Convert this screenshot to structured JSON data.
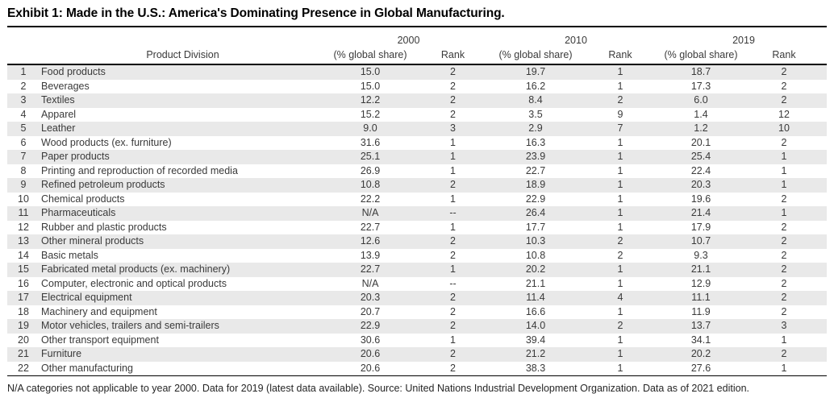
{
  "header": {
    "title": "Exhibit 1: Made in the U.S.: America's Dominating Presence in Global Manufacturing."
  },
  "table": {
    "year_columns": [
      "2000",
      "2010",
      "2019"
    ],
    "column_headers": {
      "product_division": "Product Division",
      "global_share": "(% global share)",
      "rank": "Rank"
    },
    "rows": [
      {
        "num": "1",
        "product": "Food products",
        "share_2000": "15.0",
        "rank_2000": "2",
        "share_2010": "19.7",
        "rank_2010": "1",
        "share_2019": "18.7",
        "rank_2019": "2"
      },
      {
        "num": "2",
        "product": "Beverages",
        "share_2000": "15.0",
        "rank_2000": "2",
        "share_2010": "16.2",
        "rank_2010": "1",
        "share_2019": "17.3",
        "rank_2019": "2"
      },
      {
        "num": "3",
        "product": "Textiles",
        "share_2000": "12.2",
        "rank_2000": "2",
        "share_2010": "8.4",
        "rank_2010": "2",
        "share_2019": "6.0",
        "rank_2019": "2"
      },
      {
        "num": "4",
        "product": "Apparel",
        "share_2000": "15.2",
        "rank_2000": "2",
        "share_2010": "3.5",
        "rank_2010": "9",
        "share_2019": "1.4",
        "rank_2019": "12"
      },
      {
        "num": "5",
        "product": "Leather",
        "share_2000": "9.0",
        "rank_2000": "3",
        "share_2010": "2.9",
        "rank_2010": "7",
        "share_2019": "1.2",
        "rank_2019": "10"
      },
      {
        "num": "6",
        "product": "Wood products (ex. furniture)",
        "share_2000": "31.6",
        "rank_2000": "1",
        "share_2010": "16.3",
        "rank_2010": "1",
        "share_2019": "20.1",
        "rank_2019": "2"
      },
      {
        "num": "7",
        "product": "Paper products",
        "share_2000": "25.1",
        "rank_2000": "1",
        "share_2010": "23.9",
        "rank_2010": "1",
        "share_2019": "25.4",
        "rank_2019": "1"
      },
      {
        "num": "8",
        "product": "Printing and reproduction of recorded media",
        "share_2000": "26.9",
        "rank_2000": "1",
        "share_2010": "22.7",
        "rank_2010": "1",
        "share_2019": "22.4",
        "rank_2019": "1"
      },
      {
        "num": "9",
        "product": "Refined petroleum products",
        "share_2000": "10.8",
        "rank_2000": "2",
        "share_2010": "18.9",
        "rank_2010": "1",
        "share_2019": "20.3",
        "rank_2019": "1"
      },
      {
        "num": "10",
        "product": "Chemical products",
        "share_2000": "22.2",
        "rank_2000": "1",
        "share_2010": "22.9",
        "rank_2010": "1",
        "share_2019": "19.6",
        "rank_2019": "2"
      },
      {
        "num": "11",
        "product": "Pharmaceuticals",
        "share_2000": "N/A",
        "rank_2000": "--",
        "share_2010": "26.4",
        "rank_2010": "1",
        "share_2019": "21.4",
        "rank_2019": "1"
      },
      {
        "num": "12",
        "product": "Rubber and plastic products",
        "share_2000": "22.7",
        "rank_2000": "1",
        "share_2010": "17.7",
        "rank_2010": "1",
        "share_2019": "17.9",
        "rank_2019": "2"
      },
      {
        "num": "13",
        "product": "Other mineral products",
        "share_2000": "12.6",
        "rank_2000": "2",
        "share_2010": "10.3",
        "rank_2010": "2",
        "share_2019": "10.7",
        "rank_2019": "2"
      },
      {
        "num": "14",
        "product": "Basic metals",
        "share_2000": "13.9",
        "rank_2000": "2",
        "share_2010": "10.8",
        "rank_2010": "2",
        "share_2019": "9.3",
        "rank_2019": "2"
      },
      {
        "num": "15",
        "product": "Fabricated metal products (ex. machinery)",
        "share_2000": "22.7",
        "rank_2000": "1",
        "share_2010": "20.2",
        "rank_2010": "1",
        "share_2019": "21.1",
        "rank_2019": "2"
      },
      {
        "num": "16",
        "product": "Computer, electronic and optical products",
        "share_2000": "N/A",
        "rank_2000": "--",
        "share_2010": "21.1",
        "rank_2010": "1",
        "share_2019": "12.9",
        "rank_2019": "2"
      },
      {
        "num": "17",
        "product": "Electrical equipment",
        "share_2000": "20.3",
        "rank_2000": "2",
        "share_2010": "11.4",
        "rank_2010": "4",
        "share_2019": "11.1",
        "rank_2019": "2"
      },
      {
        "num": "18",
        "product": "Machinery and equipment",
        "share_2000": "20.7",
        "rank_2000": "2",
        "share_2010": "16.6",
        "rank_2010": "1",
        "share_2019": "11.9",
        "rank_2019": "2"
      },
      {
        "num": "19",
        "product": "Motor vehicles, trailers and semi-trailers",
        "share_2000": "22.9",
        "rank_2000": "2",
        "share_2010": "14.0",
        "rank_2010": "2",
        "share_2019": "13.7",
        "rank_2019": "3"
      },
      {
        "num": "20",
        "product": "Other transport equipment",
        "share_2000": "30.6",
        "rank_2000": "1",
        "share_2010": "39.4",
        "rank_2010": "1",
        "share_2019": "34.1",
        "rank_2019": "1"
      },
      {
        "num": "21",
        "product": "Furniture",
        "share_2000": "20.6",
        "rank_2000": "2",
        "share_2010": "21.2",
        "rank_2010": "1",
        "share_2019": "20.2",
        "rank_2019": "2"
      },
      {
        "num": "22",
        "product": "Other manufacturing",
        "share_2000": "20.6",
        "rank_2000": "2",
        "share_2010": "38.3",
        "rank_2010": "1",
        "share_2019": "27.6",
        "rank_2019": "1"
      }
    ]
  },
  "footnote": "N/A categories not applicable to year 2000. Data for 2019 (latest data available). Source: United Nations Industrial Development Organization. Data as of 2021 edition.",
  "colors": {
    "stripe": "#e9e9e9",
    "rule": "#000000",
    "body_text": "#3a3a3a",
    "title_text": "#000000"
  },
  "chart_data": {
    "type": "table",
    "title": "Exhibit 1: Made in the U.S.: America's Dominating Presence in Global Manufacturing.",
    "columns": [
      "#",
      "Product Division",
      "2000 (% global share)",
      "2000 Rank",
      "2010 (% global share)",
      "2010 Rank",
      "2019 (% global share)",
      "2019 Rank"
    ],
    "rows": [
      [
        "1",
        "Food products",
        "15.0",
        "2",
        "19.7",
        "1",
        "18.7",
        "2"
      ],
      [
        "2",
        "Beverages",
        "15.0",
        "2",
        "16.2",
        "1",
        "17.3",
        "2"
      ],
      [
        "3",
        "Textiles",
        "12.2",
        "2",
        "8.4",
        "2",
        "6.0",
        "2"
      ],
      [
        "4",
        "Apparel",
        "15.2",
        "2",
        "3.5",
        "9",
        "1.4",
        "12"
      ],
      [
        "5",
        "Leather",
        "9.0",
        "3",
        "2.9",
        "7",
        "1.2",
        "10"
      ],
      [
        "6",
        "Wood products (ex. furniture)",
        "31.6",
        "1",
        "16.3",
        "1",
        "20.1",
        "2"
      ],
      [
        "7",
        "Paper products",
        "25.1",
        "1",
        "23.9",
        "1",
        "25.4",
        "1"
      ],
      [
        "8",
        "Printing and reproduction of recorded media",
        "26.9",
        "1",
        "22.7",
        "1",
        "22.4",
        "1"
      ],
      [
        "9",
        "Refined petroleum products",
        "10.8",
        "2",
        "18.9",
        "1",
        "20.3",
        "1"
      ],
      [
        "10",
        "Chemical products",
        "22.2",
        "1",
        "22.9",
        "1",
        "19.6",
        "2"
      ],
      [
        "11",
        "Pharmaceuticals",
        "N/A",
        "--",
        "26.4",
        "1",
        "21.4",
        "1"
      ],
      [
        "12",
        "Rubber and plastic products",
        "22.7",
        "1",
        "17.7",
        "1",
        "17.9",
        "2"
      ],
      [
        "13",
        "Other mineral products",
        "12.6",
        "2",
        "10.3",
        "2",
        "10.7",
        "2"
      ],
      [
        "14",
        "Basic metals",
        "13.9",
        "2",
        "10.8",
        "2",
        "9.3",
        "2"
      ],
      [
        "15",
        "Fabricated metal products (ex. machinery)",
        "22.7",
        "1",
        "20.2",
        "1",
        "21.1",
        "2"
      ],
      [
        "16",
        "Computer, electronic and optical products",
        "N/A",
        "--",
        "21.1",
        "1",
        "12.9",
        "2"
      ],
      [
        "17",
        "Electrical equipment",
        "20.3",
        "2",
        "11.4",
        "4",
        "11.1",
        "2"
      ],
      [
        "18",
        "Machinery and equipment",
        "20.7",
        "2",
        "16.6",
        "1",
        "11.9",
        "2"
      ],
      [
        "19",
        "Motor vehicles, trailers and semi-trailers",
        "22.9",
        "2",
        "14.0",
        "2",
        "13.7",
        "3"
      ],
      [
        "20",
        "Other transport equipment",
        "30.6",
        "1",
        "39.4",
        "1",
        "34.1",
        "1"
      ],
      [
        "21",
        "Furniture",
        "20.6",
        "2",
        "21.2",
        "1",
        "20.2",
        "2"
      ],
      [
        "22",
        "Other manufacturing",
        "20.6",
        "2",
        "38.3",
        "1",
        "27.6",
        "1"
      ]
    ]
  }
}
